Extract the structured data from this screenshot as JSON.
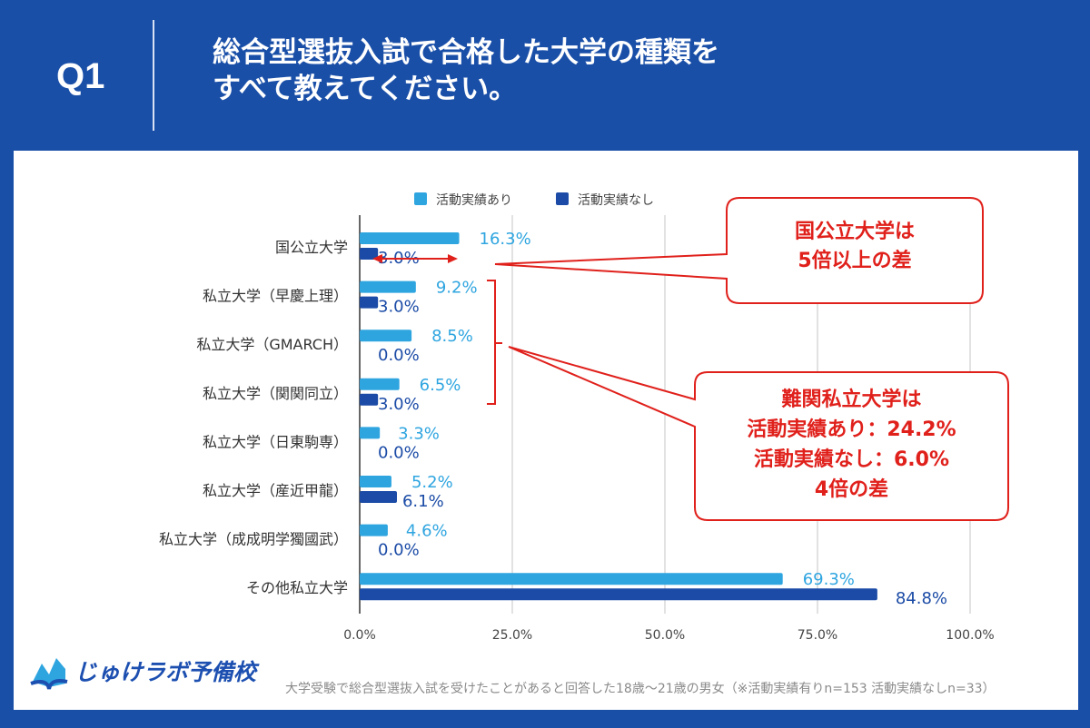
{
  "header": {
    "question_no": "Q1",
    "title_line1": "総合型選抜入試で合格した大学の種類を",
    "title_line2": "すべて教えてください。"
  },
  "colors": {
    "background": "#1a4fa8",
    "with_activity": "#2fa5e0",
    "without_activity": "#1b4ba6",
    "annotation": "#e0201b"
  },
  "chart_data": {
    "type": "bar",
    "orientation": "horizontal",
    "categories": [
      "国公立大学",
      "私立大学（早慶上理）",
      "私立大学（GMARCH）",
      "私立大学（関関同立）",
      "私立大学（日東駒専）",
      "私立大学（産近甲龍）",
      "私立大学（成成明学獨國武）",
      "その他私立大学"
    ],
    "series": [
      {
        "name": "活動実績あり",
        "values": [
          16.3,
          9.2,
          8.5,
          6.5,
          3.3,
          5.2,
          4.6,
          69.3
        ],
        "labels": [
          "16.3%",
          "9.2%",
          "8.5%",
          "6.5%",
          "3.3%",
          "5.2%",
          "4.6%",
          "69.3%"
        ]
      },
      {
        "name": "活動実績なし",
        "values": [
          3.0,
          3.0,
          0.0,
          3.0,
          0.0,
          6.1,
          0.0,
          84.8
        ],
        "labels": [
          "3.0%",
          "3.0%",
          "0.0%",
          "3.0%",
          "0.0%",
          "6.1%",
          "0.0%",
          "84.8%"
        ]
      }
    ],
    "xlim": [
      0,
      100
    ],
    "xticks": [
      "0.0%",
      "25.0%",
      "50.0%",
      "75.0%",
      "100.0%"
    ],
    "grid": true,
    "legend": "top"
  },
  "annotations": {
    "callout1": [
      "国公立大学は",
      "5倍以上の差"
    ],
    "callout2": [
      "難関私立大学は",
      "活動実績あり：24.2%",
      "活動実績なし：6.0%",
      "4倍の差"
    ]
  },
  "footer": {
    "logo": "じゅけラボ予備校",
    "source": "大学受験で総合型選抜入試を受けたことがあると回答した18歳～21歳の男女（※活動実績有りn=153 活動実績なしn=33）"
  }
}
